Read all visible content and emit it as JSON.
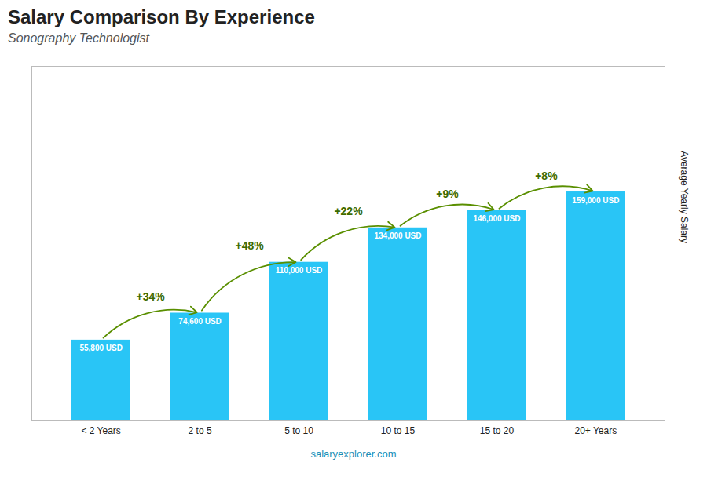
{
  "chart_data": {
    "type": "bar",
    "title": "Salary Comparison By Experience",
    "subtitle": "Sonography Technologist",
    "categories": [
      "< 2 Years",
      "2 to 5",
      "5 to 10",
      "10 to 15",
      "15 to 20",
      "20+ Years"
    ],
    "values": [
      55800,
      74600,
      110000,
      134000,
      146000,
      159000
    ],
    "value_labels": [
      "55,800 USD",
      "74,600 USD",
      "110,000 USD",
      "134,000 USD",
      "146,000 USD",
      "159,000 USD"
    ],
    "data_labels": true,
    "color": "#29c5f6",
    "ylabel": "Average Yearly Salary",
    "ylim": [
      0,
      246450
    ],
    "yticks": [],
    "tick_labels": "x",
    "annotations": [
      {
        "text": "+34%",
        "from": "< 2 Years",
        "to": "2 to 5"
      },
      {
        "text": "+48%",
        "from": "2 to 5",
        "to": "5 to 10"
      },
      {
        "text": "+22%",
        "from": "5 to 10",
        "to": "10 to 15"
      },
      {
        "text": "+9%",
        "from": "10 to 15",
        "to": "15 to 20"
      },
      {
        "text": "+8%",
        "from": "15 to 20",
        "to": "20+ Years"
      }
    ],
    "caption": "salaryexplorer.com"
  }
}
